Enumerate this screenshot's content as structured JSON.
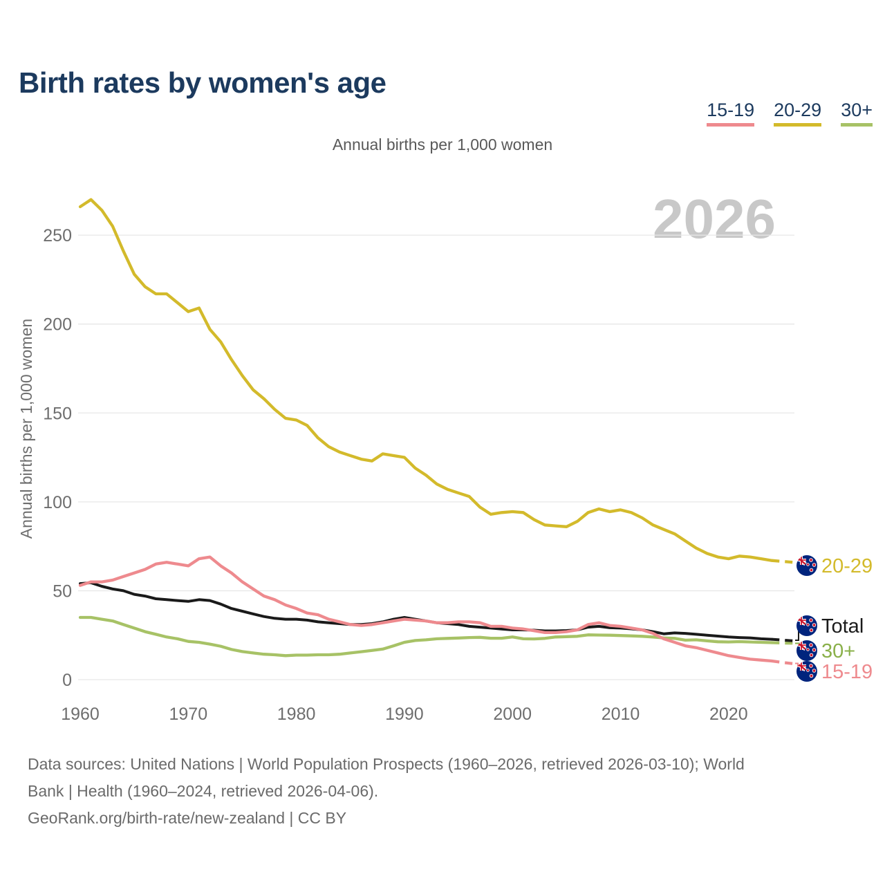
{
  "title": "Birth rates by women's age",
  "subtitle": "Annual births per 1,000 women",
  "watermark": "2026",
  "legend": {
    "items": [
      {
        "label": "15-19",
        "color": "#ee8a8e"
      },
      {
        "label": "20-29",
        "color": "#d3ba2b"
      },
      {
        "label": "30+",
        "color": "#a7c266"
      }
    ]
  },
  "chart_data": {
    "type": "line",
    "title": "Birth rates by women's age",
    "ylabel": "Annual births per 1,000 women",
    "xlim": [
      1960,
      2026
    ],
    "ylim": [
      0,
      270
    ],
    "grid": true,
    "legend_position": "top-right",
    "projection_start": 2024,
    "yticks": [
      0,
      50,
      100,
      150,
      200,
      250
    ],
    "xticks": [
      1960,
      1970,
      1980,
      1990,
      2000,
      2010,
      2020
    ],
    "x": [
      1960,
      1961,
      1962,
      1963,
      1964,
      1965,
      1966,
      1967,
      1968,
      1969,
      1970,
      1971,
      1972,
      1973,
      1974,
      1975,
      1976,
      1977,
      1978,
      1979,
      1980,
      1981,
      1982,
      1983,
      1984,
      1985,
      1986,
      1987,
      1988,
      1989,
      1990,
      1991,
      1992,
      1993,
      1994,
      1995,
      1996,
      1997,
      1998,
      1999,
      2000,
      2001,
      2002,
      2003,
      2004,
      2005,
      2006,
      2007,
      2008,
      2009,
      2010,
      2011,
      2012,
      2013,
      2014,
      2015,
      2016,
      2017,
      2018,
      2019,
      2020,
      2021,
      2022,
      2023,
      2024,
      2025,
      2026
    ],
    "series": [
      {
        "name": "20-29",
        "color": "#d3ba2b",
        "values": [
          266,
          270,
          264,
          255,
          241,
          228,
          221,
          217,
          217,
          212,
          207,
          209,
          197,
          190,
          180,
          171,
          163,
          158,
          152,
          147,
          146,
          143,
          136,
          131,
          128,
          126,
          124,
          123,
          127,
          126,
          125,
          119,
          115,
          110,
          107,
          105,
          103,
          97,
          93,
          94,
          94.5,
          94,
          90,
          87,
          86.5,
          86,
          89,
          94,
          96,
          94.5,
          95.5,
          94,
          91,
          87,
          84.5,
          82,
          78,
          74,
          71,
          69,
          68,
          69.5,
          69,
          68,
          67,
          66.5,
          66
        ]
      },
      {
        "name": "30+",
        "color": "#a7c266",
        "values": [
          35,
          35,
          34,
          33,
          31,
          29,
          27,
          25.5,
          24,
          23,
          21.5,
          21,
          20,
          18.8,
          17,
          15.8,
          15,
          14.3,
          14,
          13.5,
          13.8,
          13.8,
          14,
          14,
          14.3,
          15,
          15.7,
          16.4,
          17.2,
          19,
          21,
          22,
          22.4,
          23,
          23.2,
          23.4,
          23.7,
          23.8,
          23.3,
          23.3,
          24,
          23,
          22.9,
          23.2,
          24,
          24.2,
          24.4,
          25.2,
          25.1,
          25,
          24.8,
          24.6,
          24.4,
          24,
          23.5,
          23.2,
          22.2,
          22.4,
          21.8,
          21.3,
          21.2,
          21.4,
          21.2,
          21,
          20.8,
          20.6,
          20.5
        ]
      },
      {
        "name": "Total",
        "color": "#1a1a1a",
        "values": [
          54,
          54.5,
          52.5,
          51,
          50,
          48,
          47,
          45.5,
          45,
          44.5,
          44,
          45,
          44.5,
          42.5,
          40,
          38.5,
          37,
          35.5,
          34.5,
          34,
          34,
          33.5,
          32.5,
          32,
          31.5,
          31,
          31,
          31.5,
          32.5,
          34,
          35,
          34,
          33,
          32,
          31.5,
          31,
          30,
          29.5,
          29,
          28.5,
          28,
          28,
          27.8,
          27.4,
          27.4,
          27.6,
          28,
          29.5,
          30,
          29.2,
          29,
          28.6,
          28,
          27,
          25.8,
          26.3,
          26,
          25.5,
          25,
          24.5,
          24,
          23.7,
          23.5,
          23,
          22.7,
          22.3,
          21.8
        ]
      },
      {
        "name": "15-19",
        "color": "#ee8a8e",
        "values": [
          53,
          55,
          55,
          56,
          58,
          60,
          62,
          65,
          66,
          65,
          64,
          68,
          69,
          64,
          60,
          55,
          51,
          47,
          45,
          42,
          40,
          37.5,
          36.5,
          34,
          32.5,
          31,
          30.5,
          31,
          32,
          33,
          34,
          33.5,
          33,
          32,
          32,
          32.5,
          32.5,
          32,
          30,
          30,
          29,
          28.5,
          27.5,
          26.5,
          26.5,
          27,
          28,
          31,
          32,
          30.5,
          30,
          29,
          28,
          26,
          23,
          21,
          19,
          18,
          16.5,
          15,
          13.5,
          12.5,
          11.5,
          11,
          10.5,
          9.7,
          9
        ]
      }
    ]
  },
  "end_labels": [
    {
      "label": "20-29",
      "color": "#d3ba2b"
    },
    {
      "label": "Total",
      "color": "#1a1a1a"
    },
    {
      "label": "30+",
      "color": "#8ab04a"
    },
    {
      "label": "15-19",
      "color": "#ee8a8e"
    }
  ],
  "footer": {
    "lines": [
      "Data sources: United Nations | World Population Prospects (1960–2026, retrieved 2026-03-10); World",
      "Bank | Health (1960–2024, retrieved 2026-04-06).",
      "GeoRank.org/birth-rate/new-zealand | CC BY"
    ]
  }
}
